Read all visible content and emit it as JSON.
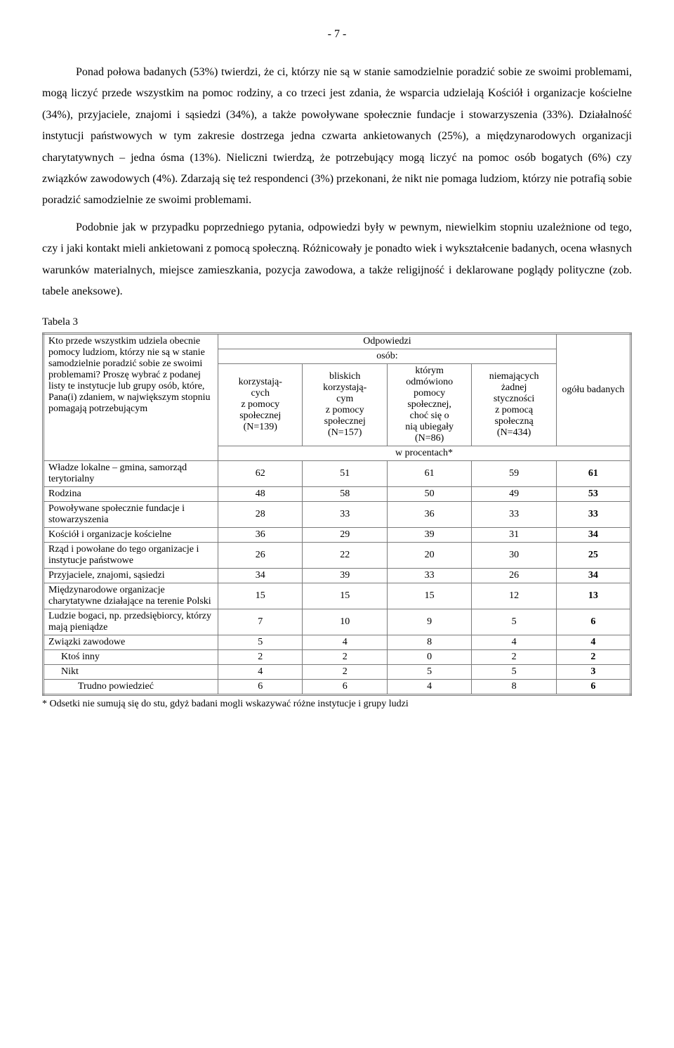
{
  "page_number": "- 7 -",
  "paragraphs": {
    "p1": "Ponad połowa badanych (53%) twierdzi, że ci, którzy nie są w stanie samodzielnie poradzić sobie ze swoimi problemami, mogą liczyć przede wszystkim na pomoc rodziny, a co trzeci jest zdania, że wsparcia udzielają Kościół i organizacje kościelne (34%), przyjaciele, znajomi i sąsiedzi (34%), a także powoływane społecznie fundacje i stowarzyszenia (33%). Działalność instytucji państwowych w tym zakresie dostrzega jedna czwarta ankietowanych (25%), a międzynarodowych organizacji charytatywnych – jedna ósma (13%). Nieliczni twierdzą, że potrzebujący mogą liczyć na pomoc osób bogatych (6%) czy związków zawodowych (4%). Zdarzają się też respondenci (3%) przekonani, że nikt nie pomaga ludziom, którzy nie potrafią sobie poradzić samodzielnie ze swoimi problemami.",
    "p2": "Podobnie jak w przypadku poprzedniego pytania, odpowiedzi były w pewnym, niewielkim stopniu uzależnione od tego, czy i jaki kontakt mieli ankietowani z pomocą społeczną. Różnicowały je ponadto wiek i wykształcenie badanych, ocena własnych warunków materialnych, miejsce zamieszkania, pozycja zawodowa, a także religijność i deklarowane poglądy polityczne (zob. tabele aneksowe)."
  },
  "table_label": "Tabela 3",
  "table": {
    "question": "Kto przede wszystkim udziela obecnie pomocy ludziom, którzy nie są w stanie samodzielnie poradzić sobie ze swoimi problemami? Proszę wybrać z podanej listy te instytucje lub grupy osób, które, Pana(i) zdaniem, w największym stopniu pomagają potrzebującym",
    "top_header": "Odpowiedzi",
    "sub_header": "osób:",
    "total_header": "ogółu badanych",
    "col1": "korzystają-\ncych\nz pomocy\nspołecznej\n(N=139)",
    "col2": "bliskich\nkorzystają-\ncym\nz pomocy\nspołecznej\n(N=157)",
    "col3": "którym\nodmówiono\npomocy\nspołecznej,\nchoć się o\nnią ubiegały\n(N=86)",
    "col4": "niemających\nżadnej\nstyczności\nz pomocą\nspołeczną\n(N=434)",
    "percent_row": "w procentach*",
    "rows": [
      {
        "label": "Władze lokalne – gmina, samorząd terytorialny",
        "indent": 0,
        "v": [
          "62",
          "51",
          "61",
          "59",
          "61"
        ]
      },
      {
        "label": "Rodzina",
        "indent": 0,
        "v": [
          "48",
          "58",
          "50",
          "49",
          "53"
        ]
      },
      {
        "label": "Powoływane społecznie fundacje i stowarzyszenia",
        "indent": 0,
        "v": [
          "28",
          "33",
          "36",
          "33",
          "33"
        ]
      },
      {
        "label": "Kościół i organizacje kościelne",
        "indent": 0,
        "v": [
          "36",
          "29",
          "39",
          "31",
          "34"
        ]
      },
      {
        "label": "Rząd i powołane do tego organizacje i instytucje państwowe",
        "indent": 0,
        "v": [
          "26",
          "22",
          "20",
          "30",
          "25"
        ]
      },
      {
        "label": "Przyjaciele, znajomi, sąsiedzi",
        "indent": 0,
        "v": [
          "34",
          "39",
          "33",
          "26",
          "34"
        ]
      },
      {
        "label": "Międzynarodowe organizacje charytatywne działające na terenie Polski",
        "indent": 0,
        "v": [
          "15",
          "15",
          "15",
          "12",
          "13"
        ]
      },
      {
        "label": "Ludzie bogaci, np. przedsiębiorcy, którzy mają pieniądze",
        "indent": 0,
        "v": [
          "7",
          "10",
          "9",
          "5",
          "6"
        ]
      },
      {
        "label": "Związki zawodowe",
        "indent": 0,
        "v": [
          "5",
          "4",
          "8",
          "4",
          "4"
        ]
      },
      {
        "label": "Ktoś inny",
        "indent": 1,
        "v": [
          "2",
          "2",
          "0",
          "2",
          "2"
        ]
      },
      {
        "label": "Nikt",
        "indent": 1,
        "v": [
          "4",
          "2",
          "5",
          "5",
          "3"
        ]
      },
      {
        "label": "Trudno powiedzieć",
        "indent": 2,
        "v": [
          "6",
          "6",
          "4",
          "8",
          "6"
        ]
      }
    ]
  },
  "footnote": "* Odsetki nie sumują się do stu, gdyż badani mogli wskazywać różne instytucje i grupy ludzi"
}
